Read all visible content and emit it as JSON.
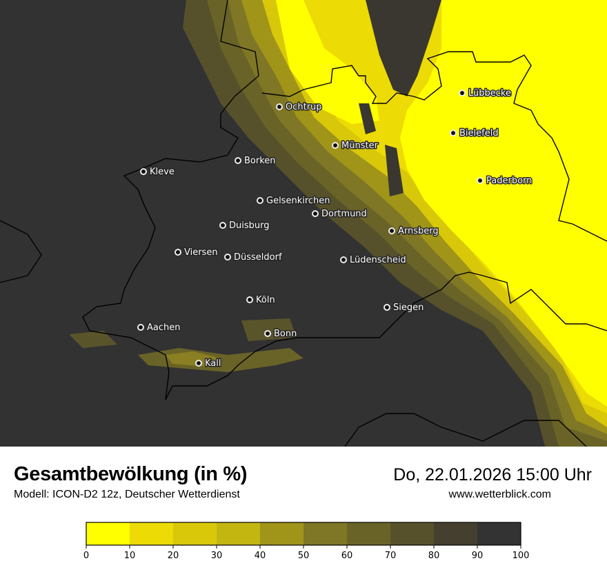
{
  "header": {
    "title": "Gesamtbewölkung (in %)",
    "model": "Modell: ICON-D2 12z, Deutscher Wetterdienst",
    "datetime": "Do, 22.01.2026 15:00 Uhr",
    "website": "www.wetterblick.com"
  },
  "colors": {
    "background_overcast": "#323232",
    "clear": "#ffff00",
    "border": "#000000",
    "city_label": "#ffffff"
  },
  "legend": {
    "ticks": [
      "0",
      "10",
      "20",
      "30",
      "40",
      "50",
      "60",
      "70",
      "80",
      "90",
      "100"
    ],
    "bins": [
      {
        "from": 0,
        "to": 10,
        "color": "#ffff00"
      },
      {
        "from": 10,
        "to": 20,
        "color": "#eddb05"
      },
      {
        "from": 20,
        "to": 30,
        "color": "#d9c80a"
      },
      {
        "from": 30,
        "to": 40,
        "color": "#c3b611"
      },
      {
        "from": 40,
        "to": 50,
        "color": "#a09419"
      },
      {
        "from": 50,
        "to": 60,
        "color": "#7f7626"
      },
      {
        "from": 60,
        "to": 70,
        "color": "#696328"
      },
      {
        "from": 70,
        "to": 80,
        "color": "#57512b"
      },
      {
        "from": 80,
        "to": 90,
        "color": "#443f2e"
      },
      {
        "from": 90,
        "to": 100,
        "color": "#333333"
      }
    ]
  },
  "cities": [
    {
      "name": "Ochtrup"
    },
    {
      "name": "Lübbecke"
    },
    {
      "name": "Bielefeld"
    },
    {
      "name": "Münster"
    },
    {
      "name": "Borken"
    },
    {
      "name": "Kleve"
    },
    {
      "name": "Paderborn"
    },
    {
      "name": "Gelsenkirchen"
    },
    {
      "name": "Dortmund"
    },
    {
      "name": "Duisburg"
    },
    {
      "name": "Arnsberg"
    },
    {
      "name": "Viersen"
    },
    {
      "name": "Düsseldorf"
    },
    {
      "name": "Lüdenscheid"
    },
    {
      "name": "Köln"
    },
    {
      "name": "Siegen"
    },
    {
      "name": "Aachen"
    },
    {
      "name": "Bonn"
    },
    {
      "name": "Kall"
    }
  ]
}
